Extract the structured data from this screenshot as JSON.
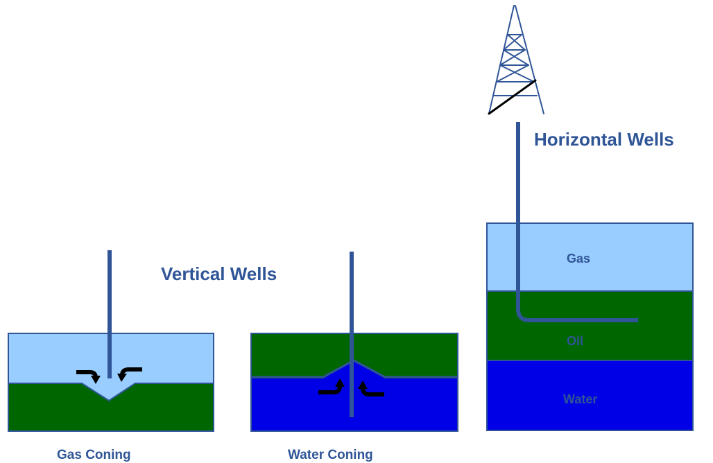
{
  "labels": {
    "horizontal_title": "Horizontal Wells",
    "vertical_title": "Vertical Wells",
    "gas_coning": "Gas Coning",
    "water_coning": "Water Coning"
  },
  "layers": {
    "gas": "Gas",
    "oil": "Oil",
    "water": "Water"
  },
  "colors": {
    "gas": "#99ccff",
    "oil": "#006600",
    "water": "#0000e6",
    "border": "#2f5597",
    "well": "#2f5597",
    "text": "#2f5597",
    "arrow": "#000000"
  }
}
